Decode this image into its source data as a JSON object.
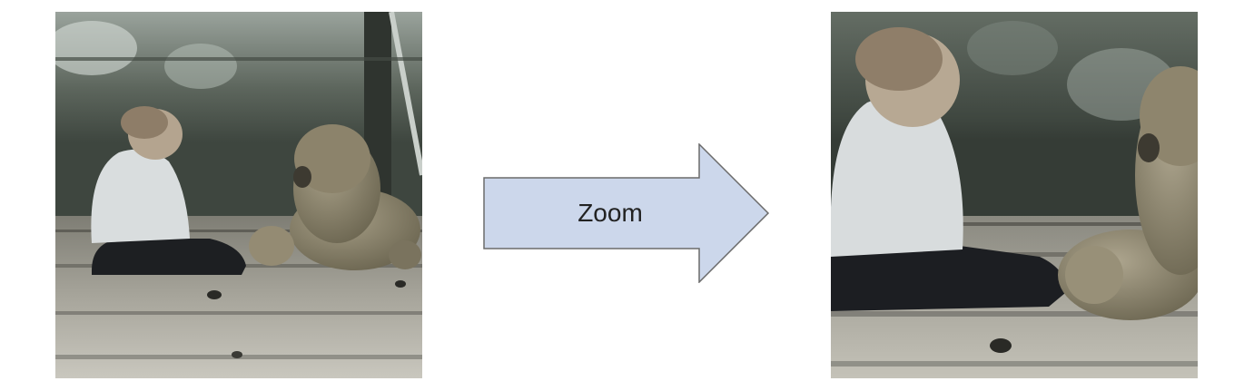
{
  "diagram": {
    "arrow_label": "Zoom",
    "arrow_fill": "#ccd7eb",
    "arrow_stroke": "#6b6b6b"
  },
  "images": {
    "original": {
      "name": "photo-child-with-teddy-bear"
    },
    "zoomed": {
      "name": "photo-child-with-teddy-bear-zoomed"
    }
  }
}
